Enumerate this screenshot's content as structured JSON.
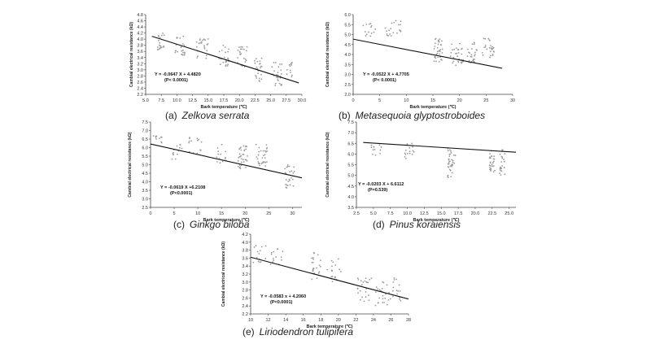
{
  "chart_data": [
    {
      "id": "a",
      "type": "scatter",
      "caption_label": "(a)",
      "species": "Zelkova serrata",
      "xlabel": "Bark temperature (℃)",
      "ylabel": "Cambial electrical resistance (kΩ)",
      "xlim": [
        5.0,
        30.0
      ],
      "ylim": [
        2.2,
        4.8
      ],
      "xticks": [
        "5.0",
        "7.5",
        "10.0",
        "12.5",
        "15.0",
        "17.5",
        "20.0",
        "22.5",
        "25.0",
        "27.5",
        "30.0"
      ],
      "yticks": [
        "2.2",
        "2.4",
        "2.6",
        "2.8",
        "3.0",
        "3.2",
        "3.4",
        "3.6",
        "3.8",
        "4.0",
        "4.2",
        "4.4",
        "4.6",
        "4.8"
      ],
      "fit": {
        "slope": -0.0647,
        "intercept": 4.482,
        "x_range": [
          6.0,
          29.5
        ]
      },
      "equation": "Y = -0.0647 X + 4.4820",
      "pvalue": "(P< 0.0001)",
      "clusters": [
        [
          7.5,
          3.95,
          0.6,
          0.3,
          22
        ],
        [
          10.5,
          3.8,
          0.8,
          0.35,
          24
        ],
        [
          14,
          3.7,
          1.0,
          0.35,
          24
        ],
        [
          17.5,
          3.45,
          0.8,
          0.35,
          22
        ],
        [
          20.5,
          3.4,
          0.8,
          0.35,
          24
        ],
        [
          23,
          3.0,
          0.6,
          0.4,
          24
        ],
        [
          26,
          2.85,
          0.8,
          0.4,
          26
        ],
        [
          28,
          3.0,
          0.5,
          0.25,
          12
        ]
      ]
    },
    {
      "id": "b",
      "type": "scatter",
      "caption_label": "(b)",
      "species": "Metasequoia glyptostroboides",
      "xlabel": "Bark temperature (℃)",
      "ylabel": "Cambial electrical resistance (kΩ)",
      "xlim": [
        0,
        30
      ],
      "ylim": [
        2.0,
        6.0
      ],
      "xticks": [
        "0",
        "5",
        "10",
        "15",
        "20",
        "25",
        "30"
      ],
      "yticks": [
        "2.0",
        "2.5",
        "3.0",
        "3.5",
        "4.0",
        "4.5",
        "5.0",
        "5.5",
        "6.0"
      ],
      "fit": {
        "slope": -0.0522,
        "intercept": 4.7705,
        "x_range": [
          0,
          28
        ]
      },
      "equation": "Y = -0.0522 X + 4.7705",
      "pvalue": "(P< 0.0001)",
      "clusters": [
        [
          3,
          5.2,
          1.2,
          0.4,
          14
        ],
        [
          7.5,
          5.3,
          1.5,
          0.4,
          20
        ],
        [
          16,
          4.2,
          0.8,
          0.6,
          36
        ],
        [
          19.5,
          4.0,
          1.2,
          0.55,
          30
        ],
        [
          22.5,
          4.1,
          1.0,
          0.55,
          26
        ],
        [
          25.5,
          4.3,
          1.2,
          0.55,
          26
        ]
      ]
    },
    {
      "id": "c",
      "type": "scatter",
      "caption_label": "(c)",
      "species": "Ginkgo biloba",
      "xlabel": "Bark temperature (℃)",
      "ylabel": "Cambial electrical resistance (kΩ)",
      "xlim": [
        0,
        32
      ],
      "ylim": [
        2.5,
        7.5
      ],
      "xticks": [
        "0",
        "5",
        "10",
        "15",
        "20",
        "25",
        "30"
      ],
      "yticks": [
        "2.5",
        "3.0",
        "3.5",
        "4.0",
        "4.5",
        "5.0",
        "5.5",
        "6.0",
        "6.5",
        "7.0",
        "7.5"
      ],
      "fit": {
        "slope": -0.0619,
        "intercept": 6.2108,
        "x_range": [
          0,
          32
        ]
      },
      "equation": "Y = -0.0619 X +6.2108",
      "pvalue": "(P<0.0001)",
      "clusters": [
        [
          1.5,
          6.5,
          1.0,
          0.4,
          10
        ],
        [
          5.5,
          5.8,
          1.2,
          0.5,
          14
        ],
        [
          9.5,
          6.1,
          1.5,
          0.5,
          14
        ],
        [
          15,
          5.7,
          1.0,
          0.6,
          14
        ],
        [
          19.5,
          5.4,
          1.0,
          0.7,
          34
        ],
        [
          23.5,
          5.6,
          1.2,
          0.7,
          30
        ],
        [
          29.5,
          4.3,
          1.2,
          0.7,
          26
        ]
      ]
    },
    {
      "id": "d",
      "type": "scatter",
      "caption_label": "(d)",
      "species": "Pinus koraiensis",
      "xlabel": "Bark temperature (℃)",
      "ylabel": "Cambial electrical resistance (kΩ)",
      "xlim": [
        2.5,
        26.0
      ],
      "ylim": [
        3.5,
        7.5
      ],
      "xticks": [
        "2.5",
        "5.0",
        "7.5",
        "10.0",
        "12.5",
        "15.0",
        "17.5",
        "20.0",
        "22.5",
        "25.0"
      ],
      "yticks": [
        "3.5",
        "4.0",
        "4.5",
        "5.0",
        "5.5",
        "6.0",
        "6.5",
        "7.0",
        "7.5"
      ],
      "fit": {
        "slope": -0.0203,
        "intercept": 6.6112,
        "x_range": [
          3.5,
          26.0
        ]
      },
      "equation": "Y = -0.0203 X + 6.6112",
      "pvalue": "(P=0.539)",
      "clusters": [
        [
          5.5,
          6.2,
          0.8,
          0.3,
          12
        ],
        [
          10,
          6.1,
          1.0,
          0.4,
          16
        ],
        [
          16.5,
          5.6,
          0.6,
          0.7,
          36
        ],
        [
          22.5,
          5.7,
          0.4,
          0.6,
          28
        ],
        [
          24,
          5.6,
          0.4,
          0.6,
          24
        ]
      ]
    },
    {
      "id": "e",
      "type": "scatter",
      "caption_label": "(e)",
      "species": "Liriodendron tulipifera",
      "xlabel": "Bark temperature (℃)",
      "ylabel": "Cambial electrical resistance (kΩ)",
      "xlim": [
        10,
        28
      ],
      "ylim": [
        2.2,
        4.2
      ],
      "xticks": [
        "10",
        "12",
        "14",
        "16",
        "18",
        "20",
        "22",
        "24",
        "26",
        "28"
      ],
      "yticks": [
        "2.2",
        "2.4",
        "2.6",
        "2.8",
        "3.0",
        "3.2",
        "3.4",
        "3.6",
        "3.8",
        "4.0",
        "4.2"
      ],
      "fit": {
        "slope": -0.0583,
        "intercept": 4.206,
        "x_range": [
          10,
          28
        ]
      },
      "equation": "Y = -0.0583 x + 4.2060",
      "pvalue": "(P<0.0001)",
      "clusters": [
        [
          11,
          3.7,
          0.8,
          0.25,
          14
        ],
        [
          13,
          3.6,
          0.8,
          0.25,
          14
        ],
        [
          17.5,
          3.4,
          0.6,
          0.35,
          22
        ],
        [
          19.5,
          3.3,
          0.8,
          0.3,
          20
        ],
        [
          23,
          2.8,
          0.8,
          0.3,
          24
        ],
        [
          25,
          2.7,
          0.8,
          0.3,
          24
        ],
        [
          26.5,
          2.8,
          0.6,
          0.3,
          16
        ]
      ]
    }
  ]
}
